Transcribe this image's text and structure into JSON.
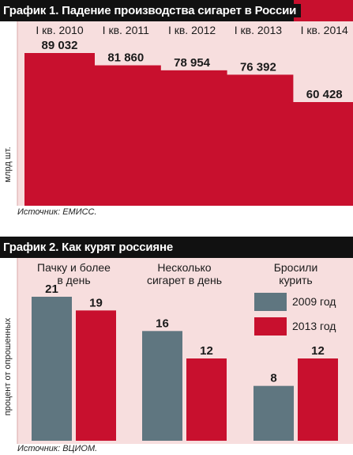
{
  "chart1": {
    "title": "График 1. Падение производства сигарет в России",
    "source": "Источник: ЕМИСС.",
    "chart_data": {
      "type": "bar",
      "title": "График 1. Падение производства сигарет в России",
      "categories": [
        "I кв. 2010",
        "I кв. 2011",
        "I кв. 2012",
        "I кв. 2013",
        "I кв. 2014"
      ],
      "values": [
        89032,
        81860,
        78954,
        76392,
        60428
      ],
      "value_labels": [
        "89 032",
        "81 860",
        "78 954",
        "76 392",
        "60 428"
      ],
      "ylabel": "млрд шт.",
      "ylim": [
        0,
        100000
      ],
      "bar_color": "#c8102e",
      "background": "#f7dede",
      "grid": false
    }
  },
  "chart2": {
    "title": "График 2. Как курят россияне",
    "source": "Источник: ВЦИОМ.",
    "chart_data": {
      "type": "bar",
      "title": "График 2. Как курят россияне",
      "categories": [
        "Пачку и более\nв день",
        "Несколько\nсигарет в день",
        "Бросили\nкурить"
      ],
      "series": [
        {
          "name": "2009 год",
          "values": [
            21,
            16,
            8
          ],
          "color": "#5f7680"
        },
        {
          "name": "2013 год",
          "values": [
            19,
            12,
            12
          ],
          "color": "#c8102e"
        }
      ],
      "ylabel": "процент от опрошенных",
      "ylim": [
        0,
        27
      ],
      "legend": "right",
      "background": "#f7dede",
      "grid": false
    }
  }
}
